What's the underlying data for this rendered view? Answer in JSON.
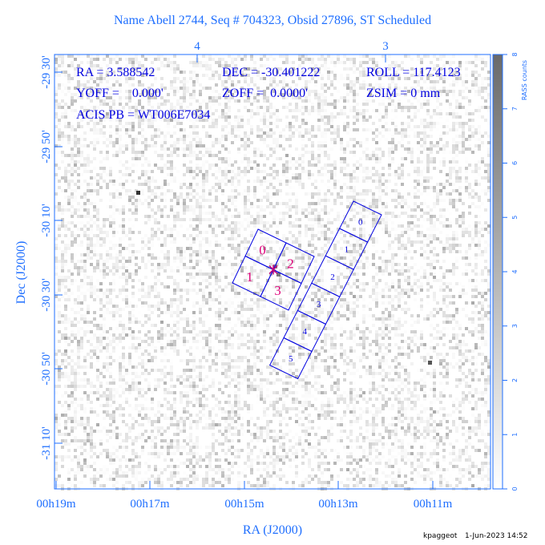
{
  "title": "Name Abell 2744, Seq # 704323, Obsid 27896, ST Scheduled",
  "info": [
    "RA = 3.588542",
    "DEC = -30.401222",
    "ROLL = 117.4123",
    "YOFF =    0.000'",
    "ZOFF =  0.0000'",
    "ZSIM = 0 mm",
    "ACIS PB = WT006E7034"
  ],
  "x_axis": {
    "label": "RA (J2000)",
    "ticks": [
      "00h19m",
      "00h17m",
      "00h15m",
      "00h13m",
      "00h11m"
    ],
    "top_ticks": [
      "4",
      "3"
    ]
  },
  "y_axis": {
    "label": "Dec (J2000)",
    "ticks": [
      "-29 30'",
      "-29 50'",
      "-30 10'",
      "-30 30'",
      "-30 50'",
      "-31 10'"
    ]
  },
  "colorbar": {
    "label": "RASS counts",
    "ticks": [
      "0",
      "1",
      "2",
      "3",
      "4",
      "5",
      "6",
      "7",
      "8"
    ]
  },
  "acis_i": [
    "0",
    "1",
    "2",
    "3"
  ],
  "acis_s": [
    "0",
    "1",
    "2",
    "3",
    "4",
    "5"
  ],
  "footer": {
    "user": "kpaggeot",
    "date": "1-Jun-2023 14:52"
  }
}
